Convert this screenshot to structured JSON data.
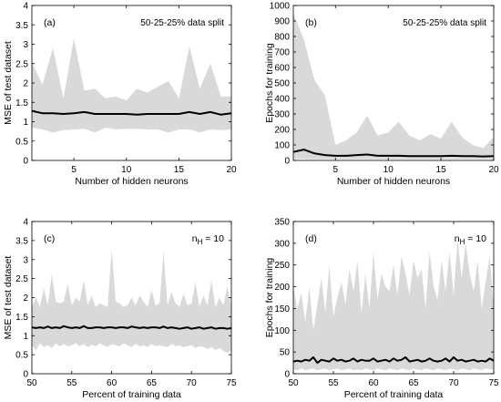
{
  "chart_data": [
    {
      "type": "area",
      "panel_label": "(a)",
      "annotation": "50-25-25% data split",
      "xlabel": "Number of hidden neurons",
      "ylabel": "MSE of test dataset",
      "xlim": [
        1,
        20
      ],
      "ylim": [
        0,
        4
      ],
      "xticks": [
        5,
        10,
        15,
        20
      ],
      "yticks": [
        0,
        0.5,
        1,
        1.5,
        2,
        2.5,
        3,
        3.5,
        4
      ],
      "band_color": "#d9d9d9",
      "line_color": "#000000",
      "x": [
        1,
        2,
        3,
        4,
        5,
        6,
        7,
        8,
        9,
        10,
        11,
        12,
        13,
        14,
        15,
        16,
        17,
        18,
        19,
        20
      ],
      "series": [
        {
          "role": "upper",
          "values": [
            2.55,
            1.95,
            2.9,
            1.6,
            3.15,
            1.8,
            1.85,
            1.6,
            1.65,
            1.55,
            1.85,
            1.75,
            1.9,
            2.05,
            1.6,
            2.95,
            1.85,
            2.5,
            1.65,
            1.65
          ]
        },
        {
          "role": "mean",
          "values": [
            1.28,
            1.22,
            1.22,
            1.2,
            1.22,
            1.25,
            1.2,
            1.2,
            1.2,
            1.2,
            1.18,
            1.2,
            1.2,
            1.2,
            1.2,
            1.25,
            1.2,
            1.25,
            1.18,
            1.22
          ]
        },
        {
          "role": "lower",
          "values": [
            0.85,
            0.8,
            0.72,
            0.78,
            0.8,
            0.82,
            0.72,
            0.85,
            0.8,
            0.82,
            0.82,
            0.8,
            0.8,
            0.72,
            0.8,
            0.8,
            0.72,
            0.8,
            0.78,
            0.8
          ]
        }
      ]
    },
    {
      "type": "area",
      "panel_label": "(b)",
      "annotation": "50-25-25% data split",
      "xlabel": "Number of hidden neurons",
      "ylabel": "Epochs for training",
      "xlim": [
        1,
        20
      ],
      "ylim": [
        0,
        1000
      ],
      "xticks": [
        5,
        10,
        15,
        20
      ],
      "yticks": [
        0,
        100,
        200,
        300,
        400,
        500,
        600,
        700,
        800,
        900,
        1000
      ],
      "band_color": "#d9d9d9",
      "line_color": "#000000",
      "x": [
        1,
        2,
        3,
        4,
        5,
        6,
        7,
        8,
        9,
        10,
        11,
        12,
        13,
        14,
        15,
        16,
        17,
        18,
        19,
        20
      ],
      "series": [
        {
          "role": "upper",
          "values": [
            950,
            780,
            520,
            420,
            100,
            130,
            180,
            290,
            160,
            180,
            250,
            160,
            130,
            170,
            140,
            250,
            150,
            100,
            80,
            150
          ]
        },
        {
          "role": "mean",
          "values": [
            55,
            70,
            45,
            35,
            30,
            30,
            35,
            38,
            30,
            30,
            30,
            28,
            28,
            28,
            28,
            30,
            28,
            28,
            26,
            28
          ]
        },
        {
          "role": "lower",
          "values": [
            8,
            10,
            8,
            8,
            8,
            8,
            8,
            8,
            8,
            8,
            8,
            8,
            8,
            8,
            8,
            8,
            8,
            8,
            8,
            8
          ]
        }
      ]
    },
    {
      "type": "area",
      "panel_label": "(c)",
      "annotation": "n_H = 10",
      "annotation_main": "n",
      "annotation_sub": "H",
      "annotation_rest": " = 10",
      "xlabel": "Percent of training data",
      "ylabel": "MSE of test dataset",
      "xlim": [
        50,
        75
      ],
      "ylim": [
        0,
        4
      ],
      "xticks": [
        50,
        55,
        60,
        65,
        70,
        75
      ],
      "yticks": [
        0,
        0.5,
        1,
        1.5,
        2,
        2.5,
        3,
        3.5,
        4
      ],
      "band_color": "#d9d9d9",
      "line_color": "#000000",
      "x": [
        50,
        50.5,
        51,
        51.5,
        52,
        52.5,
        53,
        53.5,
        54,
        54.5,
        55,
        55.5,
        56,
        56.5,
        57,
        57.5,
        58,
        58.5,
        59,
        59.5,
        60,
        60.5,
        61,
        61.5,
        62,
        62.5,
        63,
        63.5,
        64,
        64.5,
        65,
        65.5,
        66,
        66.5,
        67,
        67.5,
        68,
        68.5,
        69,
        69.5,
        70,
        70.5,
        71,
        71.5,
        72,
        72.5,
        73,
        73.5,
        74,
        74.5,
        75
      ],
      "series": [
        {
          "role": "upper",
          "values": [
            1.75,
            2.0,
            1.75,
            2.25,
            1.8,
            2.6,
            1.9,
            1.85,
            1.9,
            2.35,
            1.8,
            2.0,
            1.9,
            2.45,
            1.8,
            2.05,
            1.75,
            1.85,
            1.8,
            1.75,
            3.25,
            1.9,
            1.85,
            1.75,
            1.8,
            2.0,
            1.8,
            2.05,
            1.9,
            1.75,
            2.2,
            1.8,
            1.85,
            3.2,
            1.8,
            2.15,
            1.85,
            1.75,
            2.1,
            1.8,
            1.85,
            2.4,
            1.75,
            2.05,
            1.8,
            2.45,
            1.75,
            2.0,
            1.8,
            2.3,
            1.75
          ]
        },
        {
          "role": "mean",
          "values": [
            1.22,
            1.2,
            1.22,
            1.2,
            1.24,
            1.2,
            1.22,
            1.2,
            1.25,
            1.22,
            1.2,
            1.22,
            1.2,
            1.25,
            1.2,
            1.2,
            1.22,
            1.22,
            1.2,
            1.22,
            1.22,
            1.2,
            1.22,
            1.22,
            1.2,
            1.24,
            1.22,
            1.2,
            1.22,
            1.2,
            1.22,
            1.22,
            1.2,
            1.24,
            1.2,
            1.22,
            1.2,
            1.18,
            1.2,
            1.22,
            1.18,
            1.2,
            1.22,
            1.18,
            1.2,
            1.22,
            1.18,
            1.2,
            1.2,
            1.18,
            1.2
          ]
        },
        {
          "role": "lower",
          "values": [
            0.75,
            0.62,
            0.8,
            0.7,
            0.75,
            0.68,
            0.8,
            0.72,
            0.78,
            0.72,
            0.75,
            0.8,
            0.72,
            0.78,
            0.7,
            0.76,
            0.72,
            0.8,
            0.75,
            0.7,
            0.78,
            0.75,
            0.72,
            0.8,
            0.75,
            0.7,
            0.78,
            0.72,
            0.75,
            0.7,
            0.78,
            0.72,
            0.75,
            0.72,
            0.7,
            0.78,
            0.72,
            0.75,
            0.7,
            0.72,
            0.75,
            0.68,
            0.72,
            0.7,
            0.65,
            0.7,
            0.62,
            0.68,
            0.6,
            0.55,
            0.6
          ]
        }
      ]
    },
    {
      "type": "area",
      "panel_label": "(d)",
      "annotation": "n_H = 10",
      "annotation_main": "n",
      "annotation_sub": "H",
      "annotation_rest": " = 10",
      "xlabel": "Percent of training data",
      "ylabel": "Epochs for training",
      "xlim": [
        50,
        75
      ],
      "ylim": [
        0,
        350
      ],
      "xticks": [
        50,
        55,
        60,
        65,
        70,
        75
      ],
      "yticks": [
        0,
        50,
        100,
        150,
        200,
        250,
        300,
        350
      ],
      "band_color": "#d9d9d9",
      "line_color": "#000000",
      "x": [
        50,
        50.5,
        51,
        51.5,
        52,
        52.5,
        53,
        53.5,
        54,
        54.5,
        55,
        55.5,
        56,
        56.5,
        57,
        57.5,
        58,
        58.5,
        59,
        59.5,
        60,
        60.5,
        61,
        61.5,
        62,
        62.5,
        63,
        63.5,
        64,
        64.5,
        65,
        65.5,
        66,
        66.5,
        67,
        67.5,
        68,
        68.5,
        69,
        69.5,
        70,
        70.5,
        71,
        71.5,
        72,
        72.5,
        73,
        73.5,
        74,
        74.5,
        75
      ],
      "series": [
        {
          "role": "upper",
          "values": [
            200,
            150,
            185,
            120,
            200,
            100,
            160,
            220,
            140,
            250,
            130,
            175,
            210,
            160,
            240,
            190,
            260,
            140,
            230,
            150,
            280,
            170,
            230,
            200,
            190,
            250,
            180,
            270,
            230,
            180,
            260,
            220,
            240,
            150,
            280,
            200,
            170,
            260,
            190,
            280,
            180,
            310,
            220,
            300,
            230,
            190,
            260,
            150,
            210,
            270,
            150
          ]
        },
        {
          "role": "mean",
          "values": [
            28,
            30,
            28,
            32,
            30,
            38,
            25,
            32,
            30,
            28,
            35,
            30,
            32,
            28,
            30,
            35,
            28,
            32,
            30,
            30,
            35,
            28,
            30,
            32,
            28,
            35,
            30,
            32,
            38,
            28,
            30,
            32,
            28,
            30,
            35,
            30,
            28,
            30,
            35,
            28,
            38,
            30,
            32,
            28,
            30,
            32,
            28,
            30,
            28,
            35,
            30
          ]
        },
        {
          "role": "lower",
          "values": [
            10,
            8,
            12,
            8,
            10,
            12,
            8,
            10,
            12,
            8,
            10,
            12,
            8,
            10,
            12,
            8,
            10,
            8,
            12,
            10,
            8,
            12,
            10,
            8,
            12,
            10,
            8,
            12,
            10,
            8,
            12,
            10,
            8,
            12,
            10,
            8,
            12,
            10,
            8,
            12,
            10,
            8,
            12,
            10,
            8,
            12,
            10,
            8,
            12,
            10,
            10
          ]
        }
      ]
    }
  ]
}
